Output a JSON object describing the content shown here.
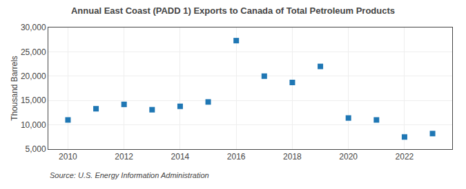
{
  "chart_data": {
    "type": "scatter",
    "title": "Annual East Coast (PADD 1) Exports to Canada of Total Petroleum Products",
    "ylabel": "Thousand Barrels",
    "annotations": [
      "Source: U.S. Energy Information Administration"
    ],
    "x": [
      2010,
      2011,
      2012,
      2013,
      2014,
      2015,
      2016,
      2017,
      2018,
      2019,
      2020,
      2021,
      2022,
      2023
    ],
    "values": [
      11000,
      13300,
      14200,
      13100,
      13800,
      14700,
      27300,
      20000,
      18700,
      22000,
      11400,
      11000,
      7500,
      8200
    ],
    "marker": "square",
    "xlim": [
      2009.3,
      2023.7
    ],
    "xticks": [
      2010,
      2012,
      2014,
      2016,
      2018,
      2020,
      2022
    ],
    "ylim": [
      5000,
      30000
    ],
    "yticks": [
      {
        "value": 5000,
        "label": "5,000"
      },
      {
        "value": 10000,
        "label": "10,000"
      },
      {
        "value": 15000,
        "label": "15,000"
      },
      {
        "value": 20000,
        "label": "20,000"
      },
      {
        "value": 25000,
        "label": "25,000"
      },
      {
        "value": 30000,
        "label": "30,000"
      }
    ],
    "grid": true
  }
}
